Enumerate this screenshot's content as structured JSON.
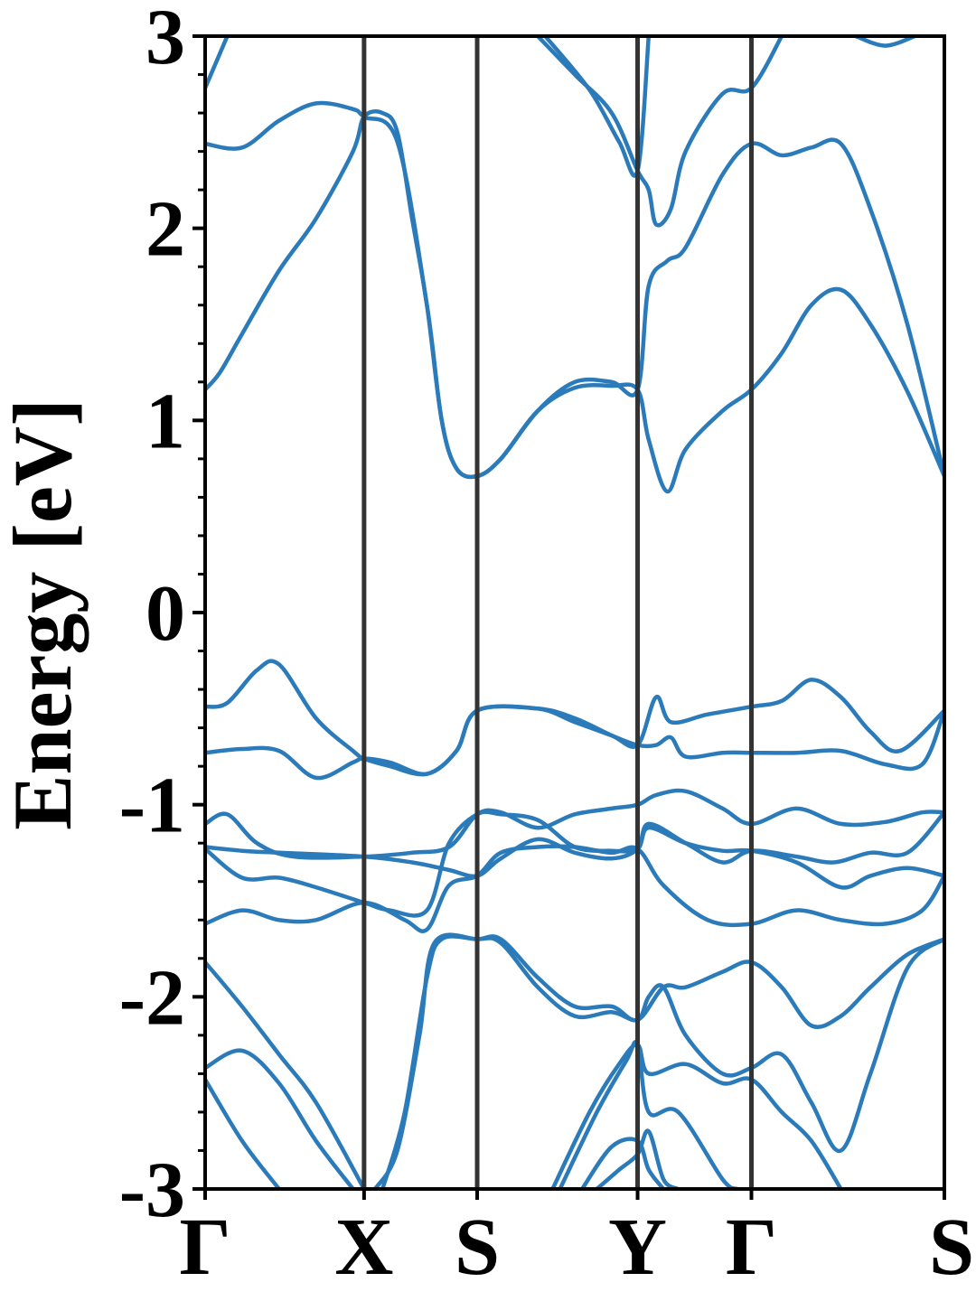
{
  "chart_data": {
    "type": "line",
    "title": "",
    "xlabel": "",
    "ylabel": "Energy [eV]",
    "ylim": [
      -3,
      3
    ],
    "y_ticks": [
      "-3",
      "-2",
      "-1",
      "0",
      "1",
      "2",
      "3"
    ],
    "minor_tick_step": 0.2,
    "grid": false,
    "kpath": {
      "labels": [
        "Γ",
        "X",
        "S",
        "Y",
        "Γ",
        "S"
      ],
      "positions": [
        0,
        0.215,
        0.368,
        0.585,
        0.739,
        1.0
      ]
    },
    "colors": {
      "bands": "#2b7bba",
      "kpath_lines": "#333333",
      "axes": "#000000"
    },
    "series": [
      {
        "values": [
          [
            0,
            1.16
          ],
          [
            0.02,
            1.25
          ],
          [
            0.05,
            1.45
          ],
          [
            0.1,
            1.78
          ],
          [
            0.15,
            2.05
          ],
          [
            0.2,
            2.4
          ],
          [
            0.215,
            2.58
          ],
          [
            0.24,
            2.6
          ],
          [
            0.26,
            2.5
          ],
          [
            0.28,
            2.05
          ],
          [
            0.3,
            1.6
          ],
          [
            0.32,
            1.0
          ],
          [
            0.34,
            0.75
          ],
          [
            0.368,
            0.71
          ],
          [
            0.4,
            0.8
          ],
          [
            0.45,
            1.05
          ],
          [
            0.5,
            1.17
          ],
          [
            0.55,
            1.18
          ],
          [
            0.585,
            1.16
          ],
          [
            0.6,
            0.9
          ],
          [
            0.625,
            0.63
          ],
          [
            0.65,
            0.85
          ],
          [
            0.7,
            1.05
          ],
          [
            0.739,
            1.16
          ],
          [
            0.78,
            1.35
          ],
          [
            0.82,
            1.6
          ],
          [
            0.86,
            1.68
          ],
          [
            0.9,
            1.5
          ],
          [
            0.95,
            1.15
          ],
          [
            1.0,
            0.71
          ]
        ]
      },
      {
        "values": [
          [
            0,
            2.44
          ],
          [
            0.05,
            2.42
          ],
          [
            0.1,
            2.56
          ],
          [
            0.15,
            2.65
          ],
          [
            0.2,
            2.62
          ],
          [
            0.215,
            2.58
          ],
          [
            0.26,
            2.45
          ],
          [
            0.3,
            1.6
          ],
          [
            0.32,
            1.0
          ],
          [
            0.34,
            0.75
          ],
          [
            0.368,
            0.71
          ],
          [
            0.4,
            0.8
          ],
          [
            0.45,
            1.05
          ],
          [
            0.5,
            1.2
          ],
          [
            0.55,
            1.2
          ],
          [
            0.585,
            1.16
          ],
          [
            0.6,
            1.7
          ],
          [
            0.625,
            1.83
          ],
          [
            0.65,
            1.9
          ],
          [
            0.7,
            2.28
          ],
          [
            0.739,
            2.44
          ],
          [
            0.78,
            2.38
          ],
          [
            0.82,
            2.42
          ],
          [
            0.86,
            2.44
          ],
          [
            0.9,
            2.1
          ],
          [
            0.95,
            1.5
          ],
          [
            1.0,
            0.71
          ]
        ]
      },
      {
        "values": [
          [
            0,
            2.73
          ],
          [
            0.03,
            3.0
          ]
        ]
      },
      {
        "values": [
          [
            0.45,
            3.0
          ],
          [
            0.5,
            2.8
          ],
          [
            0.55,
            2.6
          ],
          [
            0.585,
            2.3
          ],
          [
            0.6,
            2.2
          ],
          [
            0.61,
            2.02
          ],
          [
            0.63,
            2.1
          ],
          [
            0.65,
            2.4
          ],
          [
            0.7,
            2.7
          ],
          [
            0.739,
            2.73
          ],
          [
            0.78,
            3.0
          ]
        ]
      },
      {
        "values": [
          [
            0.46,
            3.0
          ],
          [
            0.52,
            2.72
          ],
          [
            0.56,
            2.45
          ],
          [
            0.585,
            2.3
          ],
          [
            0.6,
            3.0
          ]
        ]
      },
      {
        "values": [
          [
            0.88,
            3.0
          ],
          [
            0.92,
            2.95
          ],
          [
            0.96,
            3.0
          ]
        ]
      },
      {
        "values": [
          [
            0,
            -0.49
          ],
          [
            0.03,
            -0.47
          ],
          [
            0.07,
            -0.3
          ],
          [
            0.1,
            -0.27
          ],
          [
            0.15,
            -0.55
          ],
          [
            0.2,
            -0.72
          ],
          [
            0.215,
            -0.76
          ],
          [
            0.25,
            -0.8
          ],
          [
            0.3,
            -0.84
          ],
          [
            0.34,
            -0.72
          ],
          [
            0.368,
            -0.51
          ],
          [
            0.45,
            -0.5
          ],
          [
            0.5,
            -0.57
          ],
          [
            0.55,
            -0.64
          ],
          [
            0.585,
            -0.69
          ],
          [
            0.61,
            -0.44
          ],
          [
            0.63,
            -0.57
          ],
          [
            0.68,
            -0.53
          ],
          [
            0.739,
            -0.49
          ],
          [
            0.78,
            -0.46
          ],
          [
            0.82,
            -0.35
          ],
          [
            0.86,
            -0.44
          ],
          [
            0.9,
            -0.62
          ],
          [
            0.94,
            -0.72
          ],
          [
            1.0,
            -0.51
          ]
        ]
      },
      {
        "values": [
          [
            0,
            -0.73
          ],
          [
            0.05,
            -0.71
          ],
          [
            0.1,
            -0.72
          ],
          [
            0.15,
            -0.86
          ],
          [
            0.2,
            -0.78
          ],
          [
            0.215,
            -0.76
          ],
          [
            0.25,
            -0.78
          ],
          [
            0.3,
            -0.84
          ],
          [
            0.34,
            -0.72
          ],
          [
            0.368,
            -0.51
          ],
          [
            0.45,
            -0.5
          ],
          [
            0.5,
            -0.55
          ],
          [
            0.55,
            -0.64
          ],
          [
            0.585,
            -0.69
          ],
          [
            0.61,
            -0.69
          ],
          [
            0.63,
            -0.65
          ],
          [
            0.65,
            -0.75
          ],
          [
            0.7,
            -0.73
          ],
          [
            0.739,
            -0.73
          ],
          [
            0.8,
            -0.73
          ],
          [
            0.86,
            -0.72
          ],
          [
            0.92,
            -0.79
          ],
          [
            0.97,
            -0.79
          ],
          [
            1.0,
            -0.51
          ]
        ]
      },
      {
        "values": [
          [
            0,
            -1.1
          ],
          [
            0.03,
            -1.05
          ],
          [
            0.07,
            -1.2
          ],
          [
            0.12,
            -1.27
          ],
          [
            0.215,
            -1.27
          ],
          [
            0.28,
            -1.25
          ],
          [
            0.33,
            -1.22
          ],
          [
            0.368,
            -1.05
          ],
          [
            0.4,
            -1.04
          ],
          [
            0.45,
            -1.12
          ],
          [
            0.5,
            -1.05
          ],
          [
            0.55,
            -1.02
          ],
          [
            0.585,
            -1.0
          ],
          [
            0.61,
            -0.95
          ],
          [
            0.65,
            -0.93
          ],
          [
            0.7,
            -1.02
          ],
          [
            0.739,
            -1.1
          ],
          [
            0.8,
            -1.02
          ],
          [
            0.86,
            -1.1
          ],
          [
            0.92,
            -1.09
          ],
          [
            0.97,
            -1.04
          ],
          [
            1.0,
            -1.04
          ]
        ]
      },
      {
        "values": [
          [
            0,
            -1.22
          ],
          [
            0.05,
            -1.24
          ],
          [
            0.1,
            -1.25
          ],
          [
            0.215,
            -1.27
          ],
          [
            0.28,
            -1.3
          ],
          [
            0.33,
            -1.34
          ],
          [
            0.368,
            -1.37
          ],
          [
            0.4,
            -1.28
          ],
          [
            0.45,
            -1.18
          ],
          [
            0.5,
            -1.25
          ],
          [
            0.55,
            -1.28
          ],
          [
            0.585,
            -1.23
          ],
          [
            0.6,
            -1.1
          ],
          [
            0.65,
            -1.2
          ],
          [
            0.7,
            -1.3
          ],
          [
            0.739,
            -1.24
          ],
          [
            0.8,
            -1.27
          ],
          [
            0.85,
            -1.3
          ],
          [
            0.9,
            -1.25
          ],
          [
            0.95,
            -1.25
          ],
          [
            1.0,
            -1.04
          ]
        ]
      },
      {
        "values": [
          [
            0,
            -1.23
          ],
          [
            0.05,
            -1.38
          ],
          [
            0.1,
            -1.38
          ],
          [
            0.15,
            -1.43
          ],
          [
            0.215,
            -1.51
          ],
          [
            0.25,
            -1.55
          ],
          [
            0.3,
            -1.55
          ],
          [
            0.33,
            -1.2
          ],
          [
            0.368,
            -1.05
          ],
          [
            0.4,
            -1.05
          ],
          [
            0.45,
            -1.08
          ],
          [
            0.5,
            -1.22
          ],
          [
            0.55,
            -1.24
          ],
          [
            0.585,
            -1.23
          ],
          [
            0.6,
            -1.12
          ],
          [
            0.65,
            -1.2
          ],
          [
            0.7,
            -1.24
          ],
          [
            0.739,
            -1.24
          ],
          [
            0.8,
            -1.3
          ],
          [
            0.86,
            -1.43
          ],
          [
            0.9,
            -1.37
          ],
          [
            0.95,
            -1.33
          ],
          [
            1.0,
            -1.37
          ]
        ]
      },
      {
        "values": [
          [
            0,
            -1.62
          ],
          [
            0.05,
            -1.55
          ],
          [
            0.1,
            -1.6
          ],
          [
            0.15,
            -1.6
          ],
          [
            0.215,
            -1.51
          ],
          [
            0.27,
            -1.6
          ],
          [
            0.3,
            -1.65
          ],
          [
            0.33,
            -1.42
          ],
          [
            0.368,
            -1.37
          ],
          [
            0.4,
            -1.25
          ],
          [
            0.45,
            -1.22
          ],
          [
            0.5,
            -1.22
          ],
          [
            0.55,
            -1.25
          ],
          [
            0.585,
            -1.23
          ],
          [
            0.62,
            -1.42
          ],
          [
            0.68,
            -1.6
          ],
          [
            0.739,
            -1.62
          ],
          [
            0.8,
            -1.55
          ],
          [
            0.86,
            -1.6
          ],
          [
            0.92,
            -1.62
          ],
          [
            0.97,
            -1.55
          ],
          [
            1.0,
            -1.37
          ]
        ]
      },
      {
        "values": [
          [
            0,
            -1.82
          ],
          [
            0.05,
            -2.05
          ],
          [
            0.1,
            -2.3
          ],
          [
            0.15,
            -2.55
          ],
          [
            0.215,
            -3.0
          ]
        ]
      },
      {
        "values": [
          [
            0,
            -2.37
          ],
          [
            0.05,
            -2.28
          ],
          [
            0.1,
            -2.45
          ],
          [
            0.15,
            -2.75
          ],
          [
            0.2,
            -3.0
          ]
        ]
      },
      {
        "values": [
          [
            0,
            -2.43
          ],
          [
            0.05,
            -2.75
          ],
          [
            0.1,
            -3.0
          ]
        ]
      },
      {
        "values": [
          [
            0.24,
            -3.0
          ],
          [
            0.27,
            -2.6
          ],
          [
            0.3,
            -1.9
          ],
          [
            0.32,
            -1.7
          ],
          [
            0.368,
            -1.7
          ],
          [
            0.4,
            -1.7
          ],
          [
            0.45,
            -1.9
          ],
          [
            0.5,
            -2.05
          ],
          [
            0.55,
            -2.05
          ],
          [
            0.585,
            -2.12
          ],
          [
            0.62,
            -1.95
          ],
          [
            0.65,
            -1.95
          ],
          [
            0.7,
            -1.87
          ],
          [
            0.739,
            -1.82
          ],
          [
            0.78,
            -1.95
          ],
          [
            0.82,
            -2.15
          ],
          [
            0.86,
            -2.1
          ],
          [
            0.9,
            -1.95
          ],
          [
            0.95,
            -1.78
          ],
          [
            1.0,
            -1.7
          ]
        ]
      },
      {
        "values": [
          [
            0.23,
            -3.0
          ],
          [
            0.26,
            -2.8
          ],
          [
            0.29,
            -2.2
          ],
          [
            0.31,
            -1.72
          ],
          [
            0.368,
            -1.7
          ],
          [
            0.4,
            -1.72
          ],
          [
            0.45,
            -1.95
          ],
          [
            0.5,
            -2.1
          ],
          [
            0.55,
            -2.08
          ],
          [
            0.585,
            -2.12
          ],
          [
            0.6,
            -2.0
          ],
          [
            0.62,
            -1.95
          ],
          [
            0.65,
            -2.2
          ],
          [
            0.7,
            -2.4
          ],
          [
            0.739,
            -2.37
          ],
          [
            0.78,
            -2.3
          ],
          [
            0.82,
            -2.55
          ],
          [
            0.86,
            -2.8
          ],
          [
            0.9,
            -2.4
          ],
          [
            0.95,
            -1.85
          ],
          [
            1.0,
            -1.7
          ]
        ]
      },
      {
        "values": [
          [
            0.47,
            -3.0
          ],
          [
            0.52,
            -2.6
          ],
          [
            0.56,
            -2.35
          ],
          [
            0.585,
            -2.25
          ],
          [
            0.6,
            -2.4
          ],
          [
            0.65,
            -2.35
          ],
          [
            0.7,
            -2.45
          ],
          [
            0.739,
            -2.43
          ],
          [
            0.78,
            -2.6
          ],
          [
            0.82,
            -2.75
          ],
          [
            0.86,
            -3.0
          ]
        ]
      },
      {
        "values": [
          [
            0.48,
            -3.0
          ],
          [
            0.53,
            -2.6
          ],
          [
            0.57,
            -2.33
          ],
          [
            0.585,
            -2.25
          ],
          [
            0.6,
            -2.6
          ],
          [
            0.64,
            -2.6
          ],
          [
            0.7,
            -2.95
          ],
          [
            0.72,
            -3.0
          ]
        ]
      },
      {
        "values": [
          [
            0.51,
            -3.0
          ],
          [
            0.55,
            -2.78
          ],
          [
            0.585,
            -2.75
          ],
          [
            0.6,
            -2.9
          ],
          [
            0.62,
            -3.0
          ]
        ]
      },
      {
        "values": [
          [
            0.53,
            -3.0
          ],
          [
            0.56,
            -2.9
          ],
          [
            0.585,
            -2.82
          ],
          [
            0.6,
            -2.7
          ],
          [
            0.62,
            -2.95
          ],
          [
            0.64,
            -3.0
          ]
        ]
      }
    ]
  }
}
